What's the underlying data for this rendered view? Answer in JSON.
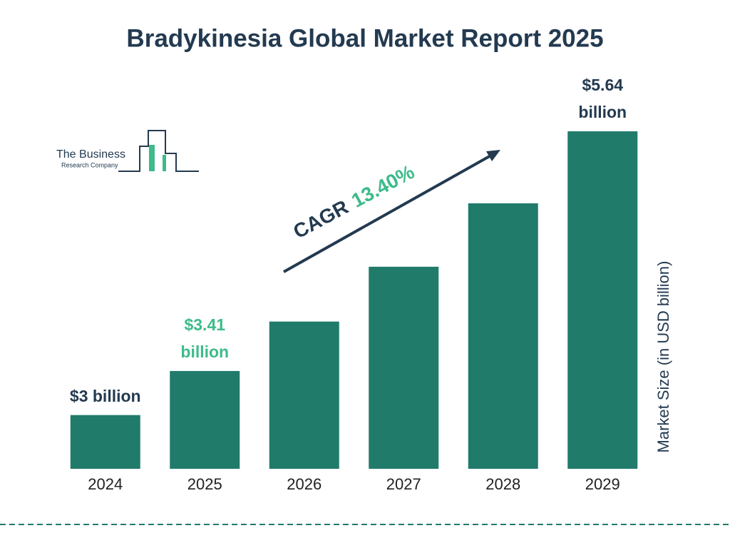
{
  "chart_data": {
    "type": "bar",
    "title": "Bradykinesia Global Market Report 2025",
    "categories": [
      "2024",
      "2025",
      "2026",
      "2027",
      "2028",
      "2029"
    ],
    "values": [
      3,
      3.41,
      3.87,
      4.38,
      4.97,
      5.64
    ],
    "value_labels": [
      "$3 billion",
      "$3.41 billion",
      null,
      null,
      null,
      "$5.64 billion"
    ],
    "highlight_index": 1,
    "color": "#217b6b",
    "label_color": "#233a50",
    "highlight_color": "#3dbb8a",
    "ylim": [
      2.5,
      5.7
    ],
    "y_axis_label": "Market Size (in USD billion)",
    "cagr_label": "CAGR",
    "cagr_value": "13.40%"
  },
  "logo": {
    "line1": "The Business",
    "line2": "Research Company"
  }
}
